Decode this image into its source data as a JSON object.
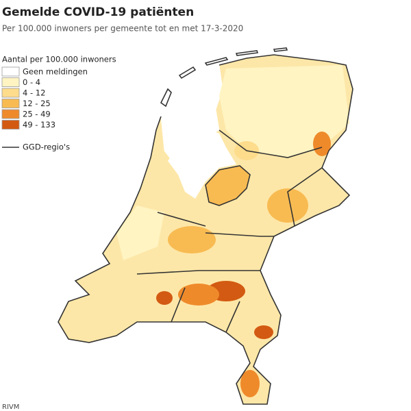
{
  "header": {
    "title": "Gemelde COVID-19 patiënten",
    "subtitle": "Per 100.000 inwoners per gemeente tot en met 17-3-2020"
  },
  "legend": {
    "title": "Aantal per 100.000 inwoners",
    "items": [
      {
        "label": "Geen meldingen",
        "color": "#ffffff"
      },
      {
        "label": "0 - 4",
        "color": "#fff4c2"
      },
      {
        "label": "4 - 12",
        "color": "#fddc8c"
      },
      {
        "label": "12 - 25",
        "color": "#f8bb52"
      },
      {
        "label": "25 - 49",
        "color": "#ef8a2b"
      },
      {
        "label": "49 - 133",
        "color": "#d35a12"
      }
    ],
    "region_line": "GGD-regio's"
  },
  "source": "RIVM"
}
